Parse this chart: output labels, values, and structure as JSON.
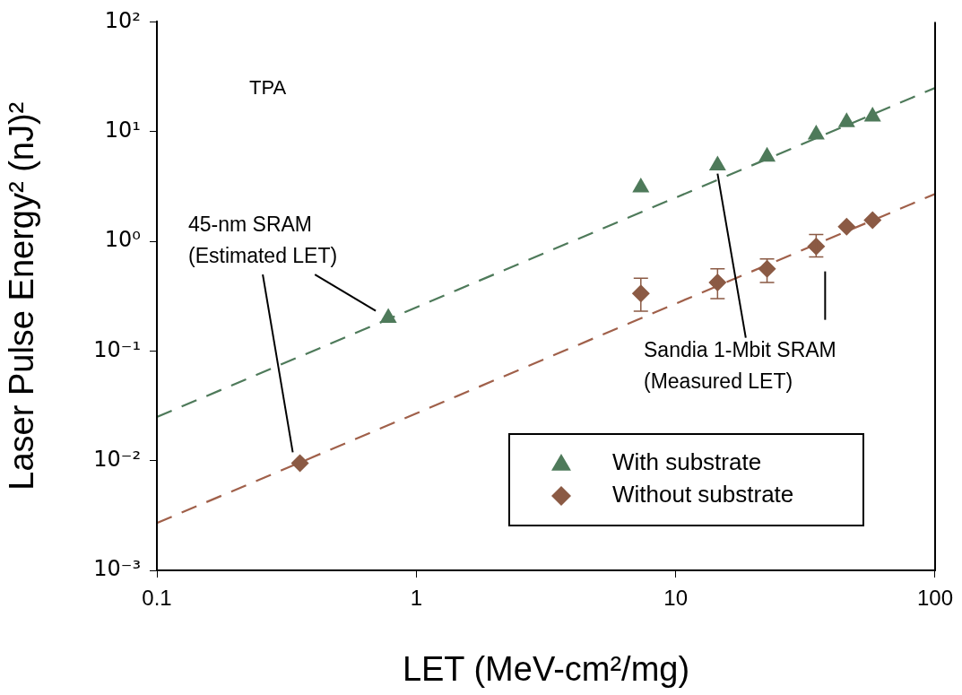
{
  "chart_data": {
    "type": "scatter",
    "xlabel": "LET (MeV-cm²/mg)",
    "ylabel": "Laser Pulse Energy² (nJ)²",
    "log": "xy",
    "xlim": [
      0.1,
      100
    ],
    "xticks": [
      0.1,
      1,
      10,
      100
    ],
    "ylim": [
      0.001,
      100
    ],
    "yticks": [
      {
        "value": 0.001,
        "label": "10⁻³"
      },
      {
        "value": 0.01,
        "label": "10⁻²"
      },
      {
        "value": 0.1,
        "label": "10⁻¹"
      },
      {
        "value": 1,
        "label": "10⁰"
      },
      {
        "value": 10,
        "label": "10¹"
      },
      {
        "value": 100,
        "label": "10²"
      }
    ],
    "grid": false,
    "legend": "bottom right",
    "series": [
      {
        "name": "With substrate",
        "color": "#4e7a5a",
        "marker": "triangle",
        "x": [
          0.78,
          7.34,
          14.5,
          22.5,
          34.8,
          45.6,
          57.4
        ],
        "values": [
          0.2,
          3.1,
          4.9,
          5.9,
          9.4,
          12.2,
          13.7
        ]
      },
      {
        "name": "Without substrate",
        "color": "#8b5a44",
        "marker": "diamond",
        "x": [
          0.356,
          7.34,
          14.5,
          22.5,
          34.8,
          45.6,
          57.4
        ],
        "values": [
          0.0095,
          0.335,
          0.42,
          0.56,
          0.9,
          1.36,
          1.56
        ],
        "errors": [
          null,
          [
            0.23,
            0.46
          ],
          [
            0.3,
            0.56
          ],
          [
            0.42,
            0.69
          ],
          [
            0.72,
            1.15
          ],
          null,
          null
        ]
      },
      {
        "type": "line",
        "color": "#4e7a5a",
        "marker": "none",
        "line_style": "dashed",
        "x": [
          0.1,
          100
        ],
        "values": [
          0.025,
          25
        ]
      },
      {
        "type": "line",
        "color": "#a0604a",
        "marker": "none",
        "line_style": "dashed",
        "x": [
          0.1,
          100
        ],
        "values": [
          0.0027,
          2.7
        ]
      }
    ],
    "annotations": [
      "TPA",
      "45-nm SRAM\n(Estimated LET)",
      {
        "text": "Sandia 1-Mbit SRAM\n(Measured LET)",
        "x": 14.5,
        "y": 4.9
      }
    ]
  }
}
